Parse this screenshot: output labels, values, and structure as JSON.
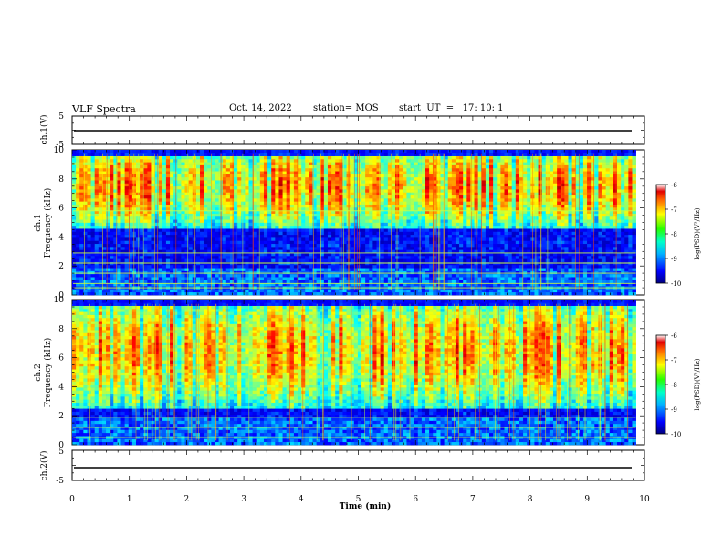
{
  "header": {
    "title": "VLF Spectra",
    "date": "Oct. 14, 2022",
    "station": "station= MOS",
    "start": "start  UT  =   17: 10: 1"
  },
  "chart_data": {
    "type": "heatmap",
    "title": "VLF Spectra",
    "xlabel": "Time  (min)",
    "x_ticks": [
      "0",
      "1",
      "2",
      "3",
      "4",
      "5",
      "6",
      "7",
      "8",
      "9",
      "10"
    ],
    "xlim": [
      0,
      10
    ],
    "data_end_min": 9.85,
    "panels": [
      {
        "id": "ch1-waveform",
        "ylabel": "ch.1(V)",
        "ylim": [
          -5,
          5
        ],
        "y_ticks": [
          "5",
          "-5"
        ],
        "trace_level": -1,
        "kind": "line"
      },
      {
        "id": "ch1-spectrogram",
        "ylabel": "ch.1",
        "ylabel2": "Frequency  (kHz)",
        "ylim": [
          0,
          10
        ],
        "y_ticks": [
          "0",
          "2",
          "4",
          "6",
          "8",
          "10"
        ],
        "kind": "heatmap",
        "emission_band_khz": [
          4.5,
          10
        ],
        "peak_khz": 7.5,
        "lines_khz": [
          0.5,
          0.8,
          1.5,
          2.2,
          2.9,
          5.8
        ],
        "colorbar": {
          "label": "log(PSD)(V²/Hz)",
          "ticks": [
            "-6",
            "-7",
            "-8",
            "-9",
            "-10"
          ],
          "range": [
            -10,
            -6
          ]
        }
      },
      {
        "id": "ch2-spectrogram",
        "ylabel": "ch.2",
        "ylabel2": "Frequency  (kHz)",
        "ylim": [
          0,
          10
        ],
        "y_ticks": [
          "0",
          "2",
          "4",
          "6",
          "8",
          "10"
        ],
        "kind": "heatmap",
        "emission_band_khz": [
          2.5,
          10
        ],
        "peak_khz": 6.5,
        "lines_khz": [
          0.5,
          1.2,
          1.9
        ],
        "colorbar": {
          "label": "log(PSD)(V²/Hz)",
          "ticks": [
            "-6",
            "-7",
            "-8",
            "-9",
            "-10"
          ],
          "range": [
            -10,
            -6
          ]
        }
      },
      {
        "id": "ch2-waveform",
        "ylabel": "ch.2(V)",
        "ylim": [
          -5,
          5
        ],
        "y_ticks": [
          "5",
          "-5"
        ],
        "trace_level": -1,
        "kind": "line"
      }
    ]
  }
}
